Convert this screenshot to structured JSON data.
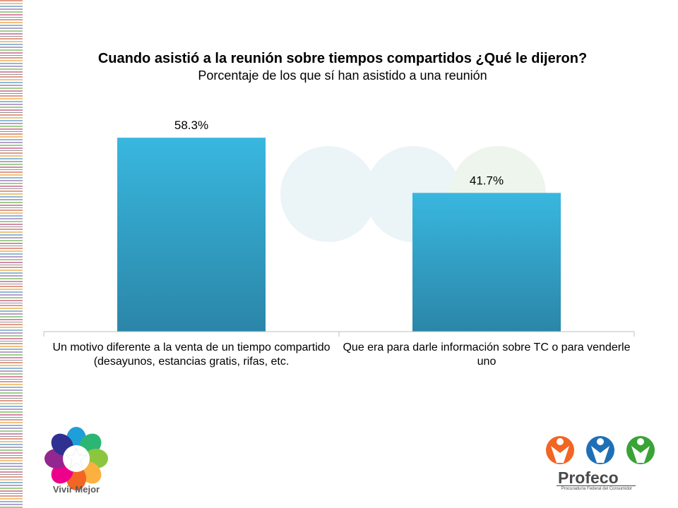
{
  "chart_data": {
    "type": "bar",
    "title": "Cuando asistió a la reunión sobre tiempos compartidos ¿Qué le dijeron?",
    "subtitle": "Porcentaje de los que sí han asistido a una reunión",
    "categories": [
      "Un motivo diferente a la venta de un tiempo compartido (desayunos, estancias gratis, rifas, etc.",
      "Que era para darle información sobre TC o para venderle uno"
    ],
    "values": [
      58.3,
      41.7
    ],
    "value_labels": [
      "58.3%",
      "41.7%"
    ],
    "ylim": [
      0,
      70
    ],
    "grid": false,
    "bar_color": "#35b3d9"
  },
  "branding": {
    "left_logo_text": "Vivir Mejor",
    "right_logo_text": "Profeco",
    "right_logo_subtext": "Procuraduría Federal del Consumidor"
  }
}
